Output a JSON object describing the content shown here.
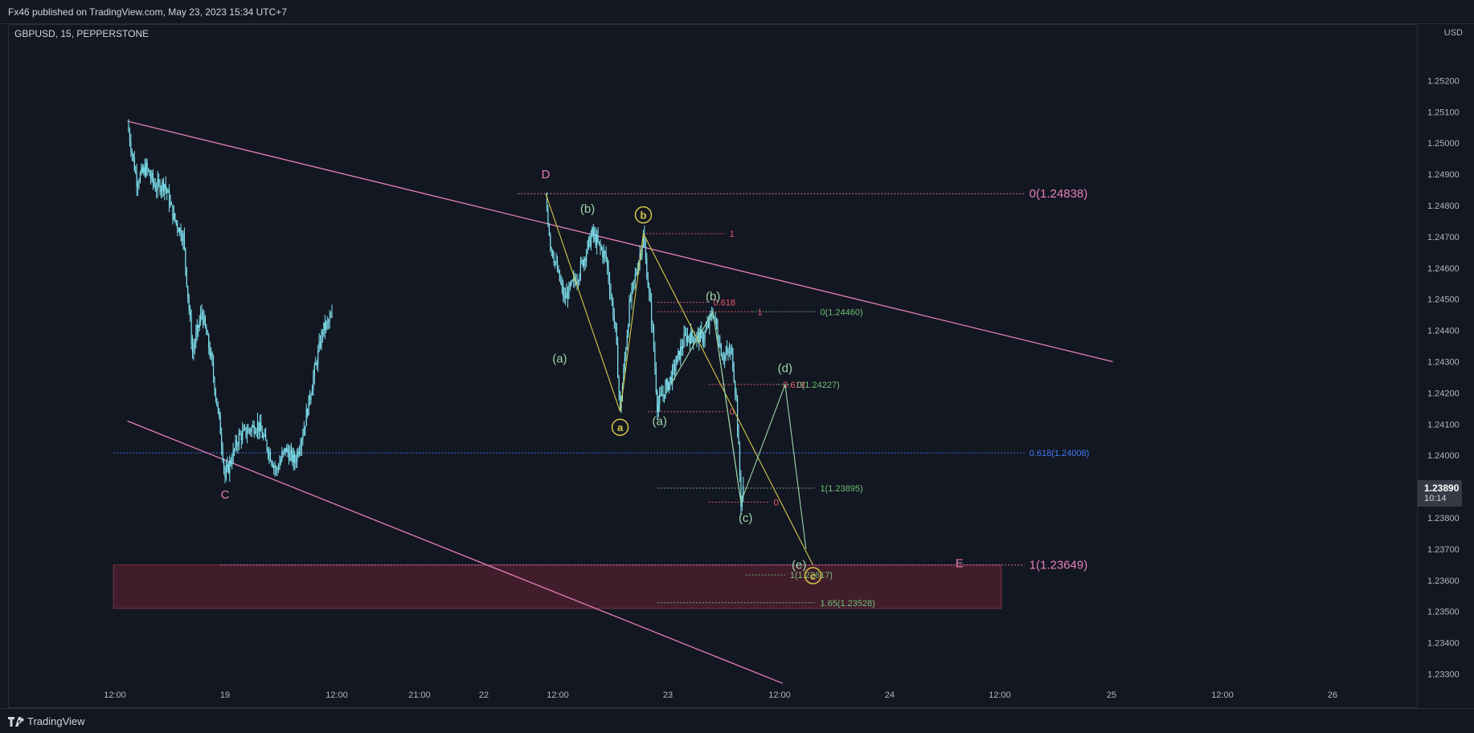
{
  "header": {
    "published": "Fx46 published on TradingView.com, May 23, 2023 15:34 UTC+7",
    "symbol": "GBPUSD, 15, PEPPERSTONE",
    "currency": "USD"
  },
  "footer": {
    "brand": "TradingView"
  },
  "price_tag": {
    "price": "1.23890",
    "countdown": "10:14"
  },
  "colors": {
    "background": "#131722",
    "candles": "#7fe3f0",
    "channel": "#e67fb8",
    "wave_yellow": "#d6c94a",
    "wave_green": "#9cd6a8",
    "fib_red": "#f05a6e",
    "fib_green": "#6fbf73",
    "fib_blue": "#3e7cf5",
    "zone": "#4a1e2e"
  },
  "chart_data": {
    "type": "candlestick",
    "y_ticks": [
      "1.23300",
      "1.23400",
      "1.23500",
      "1.23600",
      "1.23700",
      "1.23800",
      "1.23900",
      "1.24000",
      "1.24100",
      "1.24200",
      "1.24300",
      "1.24400",
      "1.24500",
      "1.24600",
      "1.24700",
      "1.24800",
      "1.24900",
      "1.25000",
      "1.25100",
      "1.25200"
    ],
    "ylim": [
      1.2325,
      1.2535
    ],
    "x_ticks": [
      "12:00",
      "19",
      "12:00",
      "21:00",
      "22",
      "12:00",
      "23",
      "12:00",
      "24",
      "12:00",
      "25",
      "12:00",
      "26"
    ],
    "price_path": [
      {
        "x": "18 03:00",
        "y": 1.2506
      },
      {
        "x": "18 05:00",
        "y": 1.2488
      },
      {
        "x": "18 07:00",
        "y": 1.2492
      },
      {
        "x": "18 09:00",
        "y": 1.2486
      },
      {
        "x": "18 11:00",
        "y": 1.2487
      },
      {
        "x": "18 13:00",
        "y": 1.2476
      },
      {
        "x": "18 15:00",
        "y": 1.247
      },
      {
        "x": "18 17:00",
        "y": 1.2433
      },
      {
        "x": "18 19:00",
        "y": 1.2446
      },
      {
        "x": "18 21:00",
        "y": 1.2431
      },
      {
        "x": "18 23:00",
        "y": 1.2408
      },
      {
        "x": "19 00:00",
        "y": 1.2393
      },
      {
        "x": "19 03:00",
        "y": 1.2406
      },
      {
        "x": "19 07:00",
        "y": 1.241
      },
      {
        "x": "19 09:00",
        "y": 1.2403
      },
      {
        "x": "19 11:00",
        "y": 1.2395
      },
      {
        "x": "19 13:00",
        "y": 1.2402
      },
      {
        "x": "19 15:00",
        "y": 1.2398
      },
      {
        "x": "19 17:00",
        "y": 1.2409
      },
      {
        "x": "19 19:00",
        "y": 1.2425
      },
      {
        "x": "19 21:00",
        "y": 1.244
      },
      {
        "x": "19 23:00",
        "y": 1.2444
      },
      {
        "x": "21 21:00",
        "y": 1.2483
      },
      {
        "x": "21 22:00",
        "y": 1.2468
      },
      {
        "x": "22 01:00",
        "y": 1.245
      },
      {
        "x": "22 04:00",
        "y": 1.2458
      },
      {
        "x": "22 07:00",
        "y": 1.2471
      },
      {
        "x": "22 10:00",
        "y": 1.2463
      },
      {
        "x": "22 12:00",
        "y": 1.244
      },
      {
        "x": "22 13:00",
        "y": 1.2414
      },
      {
        "x": "22 15:00",
        "y": 1.2448
      },
      {
        "x": "22 18:00",
        "y": 1.247
      },
      {
        "x": "22 20:00",
        "y": 1.244
      },
      {
        "x": "22 21:00",
        "y": 1.2416
      },
      {
        "x": "23 00:00",
        "y": 1.2425
      },
      {
        "x": "23 03:00",
        "y": 1.2438
      },
      {
        "x": "23 07:00",
        "y": 1.2438
      },
      {
        "x": "23 09:00",
        "y": 1.2446
      },
      {
        "x": "23 11:00",
        "y": 1.2432
      },
      {
        "x": "23 13:00",
        "y": 1.2433
      },
      {
        "x": "23 14:00",
        "y": 1.2418
      },
      {
        "x": "23 15:00",
        "y": 1.2385
      },
      {
        "x": "23 15:30",
        "y": 1.2389
      }
    ],
    "channel_lines": [
      {
        "from": {
          "x": "18 03:00",
          "y": 1.2507
        },
        "to": {
          "x": "26 23:00",
          "y": 1.243
        }
      },
      {
        "from": {
          "x": "18 03:00",
          "y": 1.2411
        },
        "to": {
          "x": "24 00:00",
          "y": 1.2327
        }
      }
    ],
    "wave_labels": [
      {
        "text": "C",
        "x": "19 00:00",
        "y": 1.23875,
        "color": "channel"
      },
      {
        "text": "D",
        "x": "21 21:00",
        "y": 1.249,
        "color": "channel"
      },
      {
        "text": "E",
        "x": "25 14:00",
        "y": 1.23655,
        "color": "channel"
      },
      {
        "text": "(a)",
        "x": "22 00:00",
        "y": 1.2431,
        "color": "wave_green"
      },
      {
        "text": "(b)",
        "x": "22 06:00",
        "y": 1.2479,
        "color": "wave_green"
      },
      {
        "text": "a",
        "x": "22 13:00",
        "y": 1.2409,
        "color": "wave_yellow",
        "circled": true
      },
      {
        "text": "b",
        "x": "22 18:00",
        "y": 1.2477,
        "color": "wave_yellow",
        "circled": true
      },
      {
        "text": "(a)",
        "x": "22 21:30",
        "y": 1.2411,
        "color": "wave_green"
      },
      {
        "text": "(b)",
        "x": "23 09:00",
        "y": 1.2451,
        "color": "wave_green"
      },
      {
        "text": "(c)",
        "x": "23 16:00",
        "y": 1.238,
        "color": "wave_green"
      },
      {
        "text": "(d)",
        "x": "24 00:30",
        "y": 1.2428,
        "color": "wave_green"
      },
      {
        "text": "(e)",
        "x": "24 03:30",
        "y": 1.2365,
        "color": "wave_green"
      },
      {
        "text": "c",
        "x": "24 06:30",
        "y": 1.23615,
        "color": "wave_yellow",
        "circled": true
      }
    ],
    "wave_lines": [
      {
        "color": "wave_yellow",
        "points": [
          {
            "x": "21 21:00",
            "y": 1.24838
          },
          {
            "x": "22 13:00",
            "y": 1.2414
          },
          {
            "x": "22 18:00",
            "y": 1.2471
          },
          {
            "x": "24 06:30",
            "y": 1.23649
          }
        ]
      },
      {
        "color": "wave_green",
        "points": [
          {
            "x": "23 00:00",
            "y": 1.2423
          },
          {
            "x": "23 09:00",
            "y": 1.2446
          },
          {
            "x": "23 15:00",
            "y": 1.2385
          },
          {
            "x": "24 00:30",
            "y": 1.24227
          },
          {
            "x": "24 05:00",
            "y": 1.237
          }
        ]
      },
      {
        "color": "wave_green",
        "points": [
          {
            "x": "23 09:00",
            "y": 1.2446
          },
          {
            "x": "23 15:00",
            "y": 1.2385
          }
        ]
      }
    ],
    "levels": [
      {
        "label": "0(1.24838)",
        "y": 1.24838,
        "from": "21 15:00",
        "to": "26 04:00",
        "color": "channel",
        "big": true
      },
      {
        "label": "0.618(1.24008)",
        "y": 1.24008,
        "from": "18 00:00",
        "to": "26 04:00",
        "color": "fib_blue"
      },
      {
        "label": "1(1.23649)",
        "y": 1.23649,
        "from": "18 23:00",
        "to": "26 04:00",
        "color": "channel",
        "big": true
      },
      {
        "label": "1",
        "y": 1.2471,
        "from": "22 18:00",
        "to": "23 11:30",
        "color": "fib_red"
      },
      {
        "label": "0.618",
        "y": 1.2449,
        "from": "22 21:00",
        "to": "23 08:00",
        "color": "fib_red"
      },
      {
        "label": "0",
        "y": 1.2414,
        "from": "22 19:00",
        "to": "23 11:30",
        "color": "fib_red"
      },
      {
        "label": "1",
        "y": 1.2446,
        "from": "22 21:00",
        "to": "23 17:30",
        "color": "fib_red"
      },
      {
        "label": "0.618",
        "y": 1.24227,
        "from": "23 08:00",
        "to": "23 23:00",
        "color": "fib_red"
      },
      {
        "label": "0",
        "y": 1.2385,
        "from": "23 08:00",
        "to": "23 21:00",
        "color": "fib_red"
      },
      {
        "label": "0(1.24460)",
        "y": 1.2446,
        "from": "23 17:30",
        "to": "24 07:00",
        "color": "fib_green"
      },
      {
        "label": "0(1.24227)",
        "y": 1.24227,
        "from": "23 23:00",
        "to": "24 02:00",
        "color": "fib_green"
      },
      {
        "label": "1(1.23895)",
        "y": 1.23895,
        "from": "22 21:00",
        "to": "24 07:00",
        "color": "fib_green"
      },
      {
        "label": "1(1.23617)",
        "y": 1.23617,
        "from": "23 16:00",
        "to": "24 00:30",
        "color": "fib_green"
      },
      {
        "label": "1.65(1.23528)",
        "y": 1.23528,
        "from": "22 21:00",
        "to": "24 07:00",
        "color": "fib_green"
      }
    ],
    "zone": {
      "from": "18 00:00",
      "to": "25 23:00",
      "y_top": 1.23649,
      "y_bottom": 1.2351
    }
  }
}
